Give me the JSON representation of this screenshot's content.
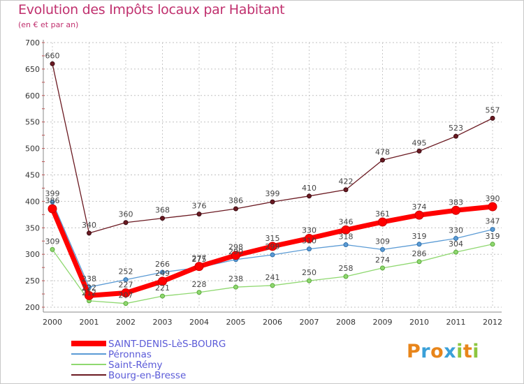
{
  "header": {
    "title": "Evolution des Impôts locaux par Habitant",
    "subtitle": "(en € et par an)"
  },
  "branding": {
    "logo_text": "Proxiti",
    "logo_colors": [
      "#e8851a",
      "#3aa0d8",
      "#e8851a",
      "#3aa0d8",
      "#8cc63f",
      "#e8851a",
      "#8cc63f"
    ]
  },
  "chart_data": {
    "type": "line",
    "title": "Evolution des Impôts locaux par Habitant",
    "subtitle": "(en € et par an)",
    "xlabel": "",
    "ylabel": "",
    "categories": [
      "2000",
      "2001",
      "2002",
      "2003",
      "2004",
      "2005",
      "2006",
      "2007",
      "2008",
      "2009",
      "2010",
      "2011",
      "2012"
    ],
    "ylim": [
      200,
      700
    ],
    "yticks": [
      200,
      250,
      300,
      350,
      400,
      450,
      500,
      550,
      600,
      650,
      700
    ],
    "grid": "horizontal dashed",
    "legend_position": "bottom-left",
    "series": [
      {
        "name": "Bourg-en-Bresse",
        "color": "#6b1a22",
        "values": [
          660,
          340,
          360,
          368,
          376,
          386,
          399,
          410,
          422,
          478,
          495,
          523,
          557
        ],
        "labels": [
          "660",
          "340",
          "360",
          "368",
          "376",
          "386",
          "399",
          "410",
          "422",
          "478",
          "495",
          "523",
          "557"
        ]
      },
      {
        "name": "Saint-Rémy",
        "color": "#8fd870",
        "values": [
          309,
          212,
          207,
          221,
          228,
          238,
          241,
          250,
          258,
          274,
          286,
          304,
          319
        ],
        "labels": [
          "309",
          "212",
          "207",
          "221",
          "228",
          "238",
          "241",
          "250",
          "258",
          "274",
          "286",
          "304",
          "319"
        ]
      },
      {
        "name": "Péronnas",
        "color": "#5b9bd5",
        "values": [
          399,
          238,
          252,
          266,
          275,
          290,
          299,
          310,
          318,
          309,
          319,
          330,
          347
        ],
        "labels": [
          "399",
          "238",
          "252",
          "266",
          "275",
          "290",
          "299",
          "310",
          "318",
          "309",
          "319",
          "330",
          "347"
        ]
      },
      {
        "name": "SAINT-DENIS-LèS-BOURG",
        "color": "#ff0000",
        "values": [
          386,
          222,
          227,
          249,
          277,
          298,
          315,
          330,
          346,
          361,
          374,
          383,
          390
        ],
        "labels": [
          "386",
          "222",
          "227",
          "249",
          "277",
          "298",
          "315",
          "330",
          "346",
          "361",
          "374",
          "383",
          "390"
        ]
      }
    ],
    "legend": [
      "SAINT-DENIS-LèS-BOURG",
      "Péronnas",
      "Saint-Rémy",
      "Bourg-en-Bresse"
    ]
  }
}
